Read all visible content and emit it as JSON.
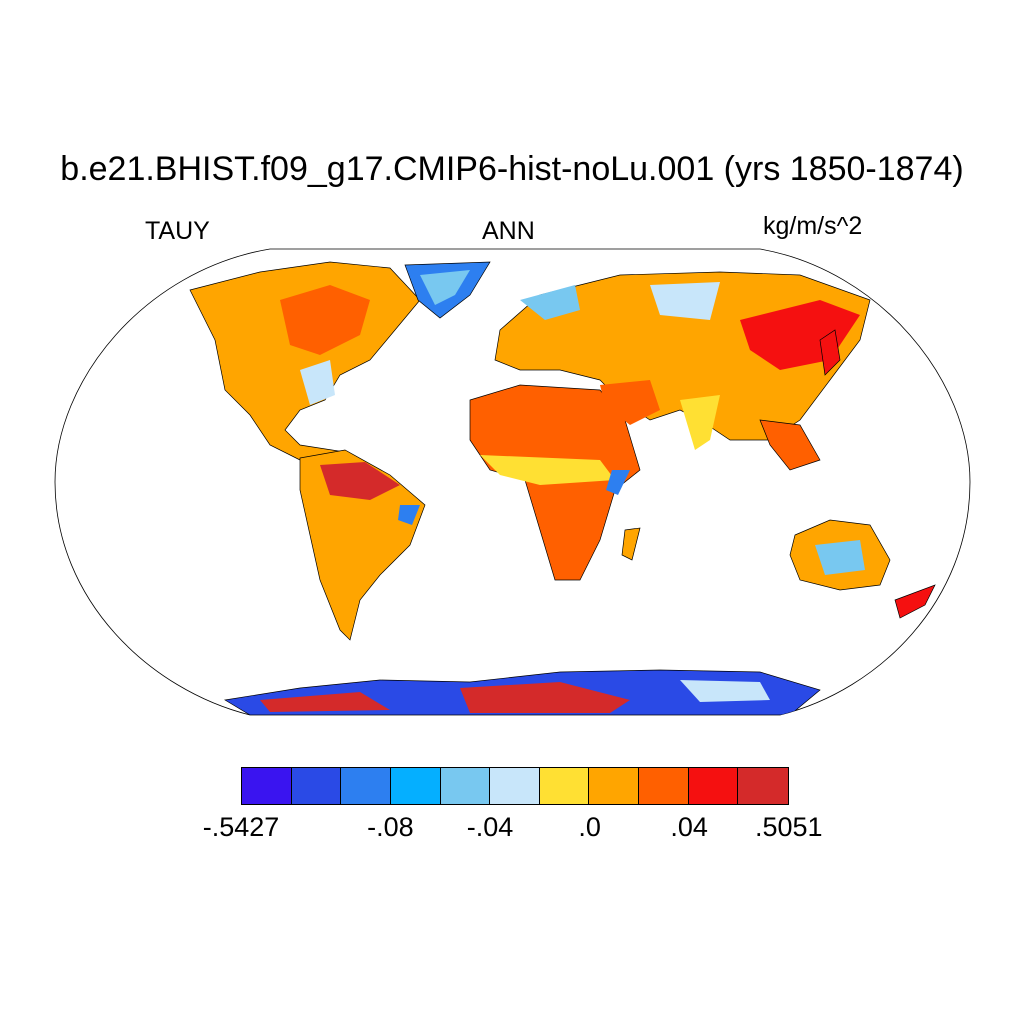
{
  "title": "b.e21.BHIST.f09_g17.CMIP6-hist-noLu.001 (yrs 1850-1874)",
  "left_label": "TAUY",
  "center_label": "ANN",
  "units": "kg/m/s^2",
  "colorbar": {
    "colors": [
      "#3a14f0",
      "#2a4ae6",
      "#2d7ff0",
      "#05afff",
      "#78c8f0",
      "#c8e6fa",
      "#ffe033",
      "#ffa500",
      "#ff6000",
      "#f51010",
      "#d42a2a"
    ],
    "labels": [
      {
        "text": "-.5427",
        "edge": 0
      },
      {
        "text": "-.08",
        "edge": 3
      },
      {
        "text": "-.04",
        "edge": 5
      },
      {
        "text": ".0",
        "edge": 7
      },
      {
        "text": ".04",
        "edge": 9
      },
      {
        "text": ".5051",
        "edge": 11
      }
    ]
  }
}
